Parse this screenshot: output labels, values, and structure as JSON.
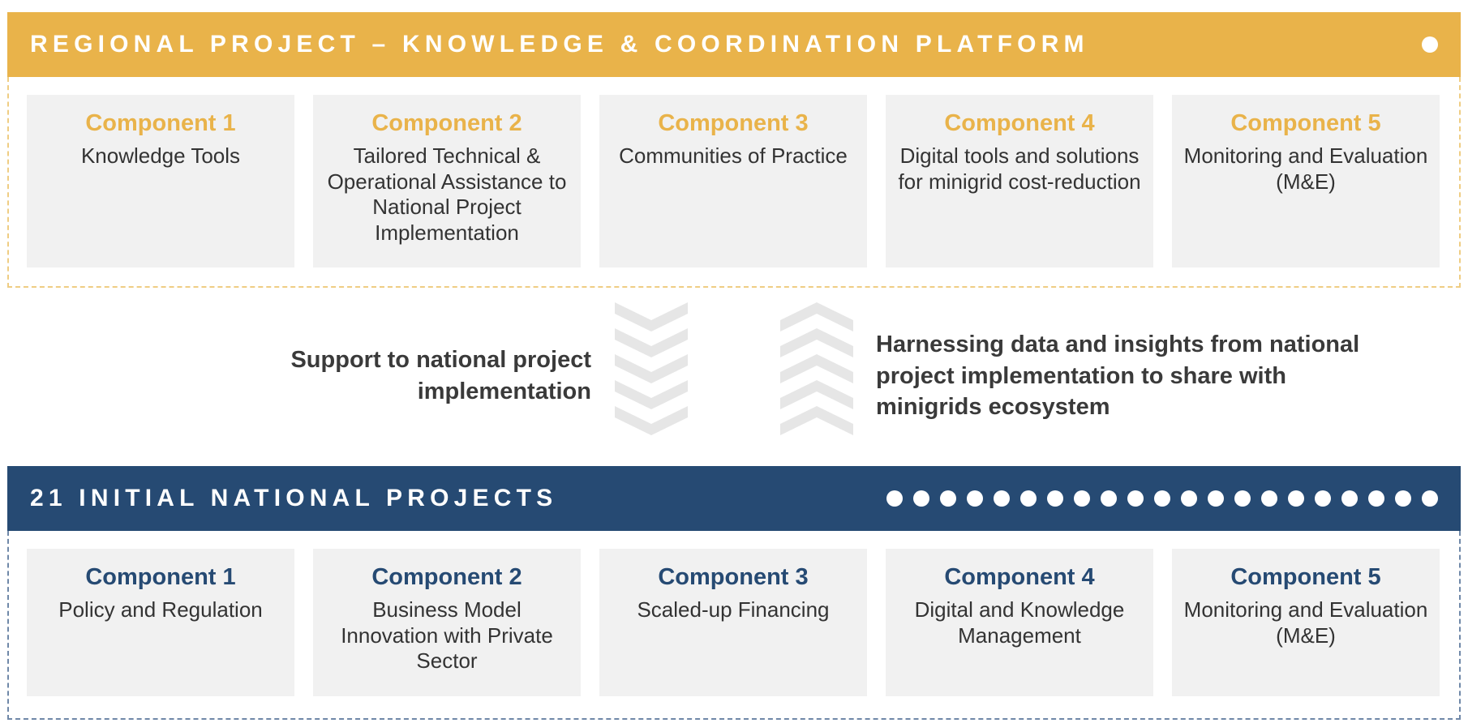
{
  "regional": {
    "title": "REGIONAL PROJECT – KNOWLEDGE & COORDINATION  PLATFORM",
    "accent": "#e9b34a",
    "components": [
      {
        "title": "Component 1",
        "desc": "Knowledge Tools"
      },
      {
        "title": "Component 2",
        "desc": "Tailored Technical & Operational Assistance to National Project Implementation"
      },
      {
        "title": "Component 3",
        "desc": "Communities of Practice"
      },
      {
        "title": "Component 4",
        "desc": "Digital tools and solutions for minigrid cost-reduction"
      },
      {
        "title": "Component 5",
        "desc": "Monitoring and Evaluation (M&E)"
      }
    ]
  },
  "flows": {
    "down_label": "Support to national project implementation",
    "up_label": "Harnessing data and insights from national project implementation to share with minigrids ecosystem"
  },
  "national": {
    "title": "21 INITIAL NATIONAL PROJECTS",
    "accent": "#264a73",
    "project_count": 21,
    "components": [
      {
        "title": "Component 1",
        "desc": "Policy and Regulation"
      },
      {
        "title": "Component 2",
        "desc": "Business Model Innovation with Private Sector"
      },
      {
        "title": "Component 3",
        "desc": "Scaled-up Financing"
      },
      {
        "title": "Component 4",
        "desc": "Digital and Knowledge Management"
      },
      {
        "title": "Component 5",
        "desc": "Monitoring and Evaluation (M&E)"
      }
    ]
  }
}
